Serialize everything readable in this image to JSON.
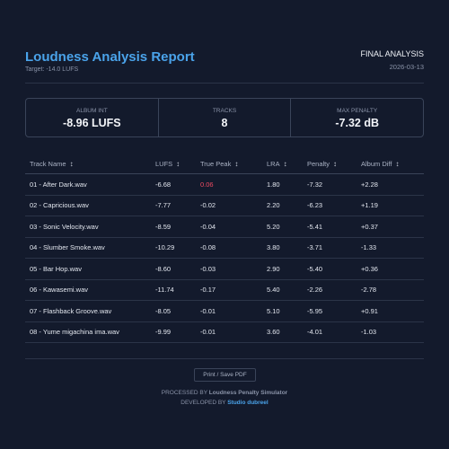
{
  "header": {
    "title": "Loudness Analysis Report",
    "target": "Target: -14.0 LUFS",
    "final_label": "FINAL ANALYSIS",
    "date": "2026-03-13"
  },
  "stats": [
    {
      "label": "ALBUM INT",
      "value": "-8.96 LUFS"
    },
    {
      "label": "TRACKS",
      "value": "8"
    },
    {
      "label": "MAX PENALTY",
      "value": "-7.32 dB"
    }
  ],
  "table": {
    "sort_glyph": "↕",
    "columns": [
      "Track Name",
      "LUFS",
      "True Peak",
      "LRA",
      "Penalty",
      "Album Diff"
    ],
    "rows": [
      {
        "name": "01 - After Dark.wav",
        "lufs": "-6.68",
        "true_peak": "0.06",
        "lra": "1.80",
        "penalty": "-7.32",
        "album_diff": "+2.28",
        "peak_over": true
      },
      {
        "name": "02 - Capricious.wav",
        "lufs": "-7.77",
        "true_peak": "-0.02",
        "lra": "2.20",
        "penalty": "-6.23",
        "album_diff": "+1.19",
        "peak_over": false
      },
      {
        "name": "03 - Sonic Velocity.wav",
        "lufs": "-8.59",
        "true_peak": "-0.04",
        "lra": "5.20",
        "penalty": "-5.41",
        "album_diff": "+0.37",
        "peak_over": false
      },
      {
        "name": "04 - Slumber Smoke.wav",
        "lufs": "-10.29",
        "true_peak": "-0.08",
        "lra": "3.80",
        "penalty": "-3.71",
        "album_diff": "-1.33",
        "peak_over": false
      },
      {
        "name": "05 - Bar Hop.wav",
        "lufs": "-8.60",
        "true_peak": "-0.03",
        "lra": "2.90",
        "penalty": "-5.40",
        "album_diff": "+0.36",
        "peak_over": false
      },
      {
        "name": "06 - Kawasemi.wav",
        "lufs": "-11.74",
        "true_peak": "-0.17",
        "lra": "5.40",
        "penalty": "-2.26",
        "album_diff": "-2.78",
        "peak_over": false
      },
      {
        "name": "07 - Flashback Groove.wav",
        "lufs": "-8.05",
        "true_peak": "-0.01",
        "lra": "5.10",
        "penalty": "-5.95",
        "album_diff": "+0.91",
        "peak_over": false
      },
      {
        "name": "08 - Yume migachina ima.wav",
        "lufs": "-9.99",
        "true_peak": "-0.01",
        "lra": "3.60",
        "penalty": "-4.01",
        "album_diff": "-1.03",
        "peak_over": false
      }
    ]
  },
  "footer": {
    "print_label": "Print / Save PDF",
    "processed_prefix": "PROCESSED BY",
    "processed_name": "Loudness Penalty Simulator",
    "developed_prefix": "DEVELOPED BY",
    "developed_name": "Studio dubreel"
  },
  "colors": {
    "background": "#131a2c",
    "accent": "#4aa3ea",
    "peak_over": "#ef4b62"
  }
}
